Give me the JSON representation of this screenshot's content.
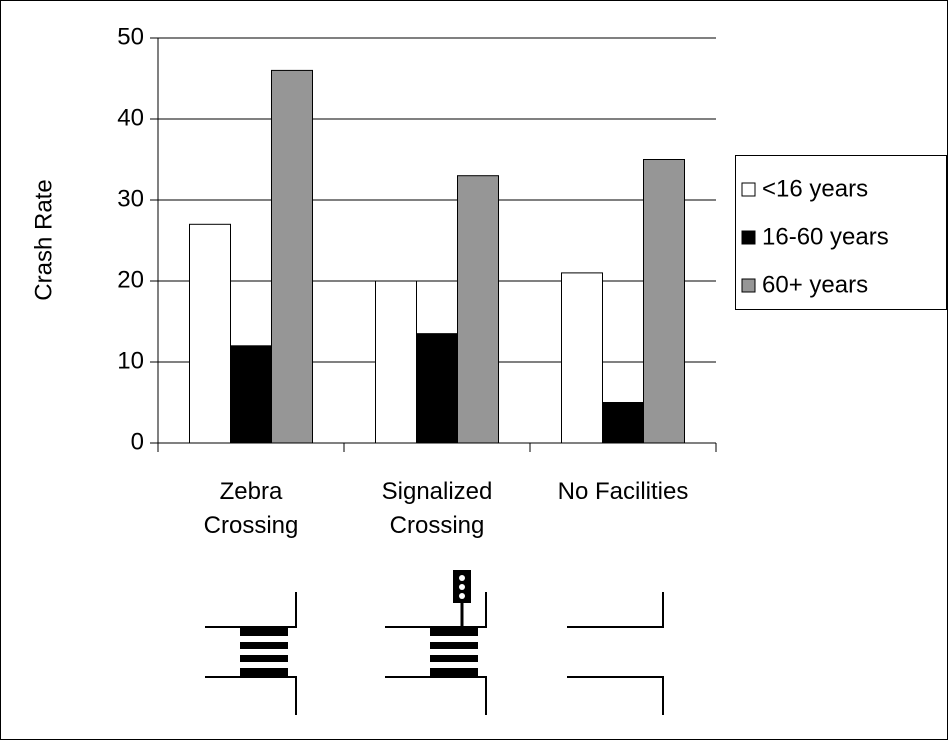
{
  "chart_data": {
    "type": "bar",
    "y_label": "Crash Rate",
    "categories": [
      "Zebra\nCrossing",
      "Signalized\nCrossing",
      "No Facilities"
    ],
    "series": [
      {
        "name": "<16 years",
        "color": "#ffffff",
        "values": [
          27,
          20,
          21
        ]
      },
      {
        "name": "16-60 years",
        "color": "#000000",
        "values": [
          12,
          13.5,
          5
        ]
      },
      {
        "name": "60+ years",
        "color": "#969696",
        "values": [
          46,
          33,
          35
        ]
      }
    ],
    "ylim": [
      0,
      50
    ],
    "yticks": [
      0,
      10,
      20,
      30,
      40,
      50
    ],
    "grid": true,
    "legend": "right"
  }
}
